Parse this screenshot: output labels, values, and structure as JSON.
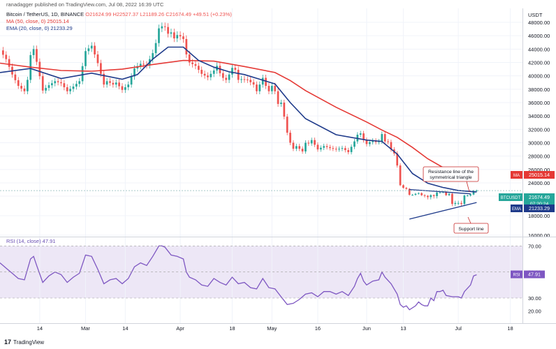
{
  "header": {
    "published": "ranadagger published on TradingView.com, Jul 08, 2022 16:39 UTC"
  },
  "legend": {
    "symbol": "Bitcoin / TetherUS, 1D, BINANCE",
    "ohlc": "O21624.99  H22527.37  L21189.26  C21674.49  +49.51 (+0.23%)",
    "ma": "MA (50, close, 0)  25015.14",
    "ema": "EMA (20, close, 0)  21233.29"
  },
  "rsi_legend": "RSI (14, close)  47.91",
  "footer": {
    "brand": "TradingView",
    "logo": "17"
  },
  "colors": {
    "up": "#26a69a",
    "down": "#ef5350",
    "ma": "#e53935",
    "ema": "#1e3a8a",
    "rsi": "#7e57c2",
    "rsi_band": "#ede7f6",
    "annotation": "#c62828",
    "trendline": "#1e3a8a"
  },
  "chart_data": [
    {
      "type": "candlestick",
      "title": "Bitcoin / TetherUS, 1D, BINANCE",
      "currency": "USDT",
      "y_ticks": [
        "48000.00",
        "46000.00",
        "44000.00",
        "42000.00",
        "40000.00",
        "38000.00",
        "36000.00",
        "34000.00",
        "32000.00",
        "30000.00",
        "28000.00",
        "26000.00",
        "24000.00",
        "20000.00",
        "18000.00",
        "16000.00"
      ],
      "ylim": [
        15500,
        49000
      ],
      "x_ticks": [
        {
          "label": "14",
          "x": 13
        },
        {
          "label": "Mar",
          "x": 28
        },
        {
          "label": "14",
          "x": 41
        },
        {
          "label": "Apr",
          "x": 59
        },
        {
          "label": "18",
          "x": 76
        },
        {
          "label": "May",
          "x": 89
        },
        {
          "label": "16",
          "x": 104
        },
        {
          "label": "Jun",
          "x": 120
        },
        {
          "label": "13",
          "x": 132
        },
        {
          "label": "Jul",
          "x": 150
        },
        {
          "label": "18",
          "x": 167
        }
      ],
      "xlim": [
        0,
        171
      ],
      "close_path": [
        [
          0,
          43800
        ],
        [
          2,
          42500
        ],
        [
          4,
          40200
        ],
        [
          6,
          38500
        ],
        [
          8,
          37700
        ],
        [
          9,
          39400
        ],
        [
          10,
          43100
        ],
        [
          11,
          44000
        ],
        [
          12,
          42100
        ],
        [
          14,
          37800
        ],
        [
          16,
          38600
        ],
        [
          18,
          39200
        ],
        [
          20,
          38900
        ],
        [
          22,
          37700
        ],
        [
          24,
          38400
        ],
        [
          26,
          39200
        ],
        [
          28,
          43700
        ],
        [
          30,
          44500
        ],
        [
          32,
          41900
        ],
        [
          34,
          38700
        ],
        [
          35,
          39200
        ],
        [
          37,
          38700
        ],
        [
          38,
          39000
        ],
        [
          40,
          37900
        ],
        [
          42,
          38700
        ],
        [
          44,
          41100
        ],
        [
          46,
          41800
        ],
        [
          48,
          41600
        ],
        [
          50,
          43400
        ],
        [
          51,
          44900
        ],
        [
          52,
          47100
        ],
        [
          53,
          47400
        ],
        [
          54,
          47300
        ],
        [
          55,
          46300
        ],
        [
          56,
          46500
        ],
        [
          57,
          45600
        ],
        [
          58,
          46100
        ],
        [
          59,
          45900
        ],
        [
          60,
          45500
        ],
        [
          61,
          43200
        ],
        [
          62,
          42000
        ],
        [
          64,
          41500
        ],
        [
          66,
          40300
        ],
        [
          68,
          39800
        ],
        [
          70,
          40800
        ],
        [
          71,
          41500
        ],
        [
          72,
          40400
        ],
        [
          73,
          39700
        ],
        [
          74,
          39400
        ],
        [
          75,
          40200
        ],
        [
          76,
          41200
        ],
        [
          77,
          40900
        ],
        [
          78,
          39400
        ],
        [
          79,
          39500
        ],
        [
          81,
          39400
        ],
        [
          83,
          38700
        ],
        [
          84,
          37700
        ],
        [
          86,
          39700
        ],
        [
          87,
          38500
        ],
        [
          88,
          37700
        ],
        [
          89,
          38500
        ],
        [
          90,
          37700
        ],
        [
          91,
          35800
        ],
        [
          92,
          36000
        ],
        [
          93,
          33900
        ],
        [
          94,
          31500
        ],
        [
          95,
          30000
        ],
        [
          96,
          29100
        ],
        [
          97,
          29500
        ],
        [
          99,
          28700
        ],
        [
          100,
          30000
        ],
        [
          101,
          29900
        ],
        [
          102,
          30400
        ],
        [
          103,
          29700
        ],
        [
          104,
          29000
        ],
        [
          106,
          29500
        ],
        [
          108,
          29200
        ],
        [
          110,
          29000
        ],
        [
          112,
          29200
        ],
        [
          114,
          28600
        ],
        [
          115,
          29400
        ],
        [
          116,
          30200
        ],
        [
          117,
          31200
        ],
        [
          118,
          31400
        ],
        [
          119,
          30400
        ],
        [
          120,
          29800
        ],
        [
          121,
          30100
        ],
        [
          122,
          30300
        ],
        [
          123,
          30100
        ],
        [
          124,
          30200
        ],
        [
          125,
          31300
        ],
        [
          126,
          30200
        ],
        [
          127,
          30100
        ],
        [
          128,
          29000
        ],
        [
          129,
          28400
        ],
        [
          130,
          26600
        ],
        [
          131,
          23300
        ],
        [
          132,
          22500
        ],
        [
          133,
          22200
        ],
        [
          134,
          20400
        ],
        [
          135,
          20400
        ],
        [
          136,
          20700
        ],
        [
          137,
          20900
        ],
        [
          138,
          20300
        ],
        [
          139,
          20100
        ],
        [
          140,
          19900
        ],
        [
          141,
          20300
        ],
        [
          142,
          20000
        ],
        [
          143,
          21100
        ],
        [
          144,
          21100
        ],
        [
          145,
          21300
        ],
        [
          146,
          20300
        ],
        [
          147,
          20700
        ],
        [
          148,
          19200
        ],
        [
          149,
          19300
        ],
        [
          150,
          19300
        ],
        [
          151,
          19200
        ],
        [
          152,
          20200
        ],
        [
          153,
          20200
        ],
        [
          154,
          20500
        ],
        [
          155,
          21600
        ],
        [
          156,
          21700
        ]
      ],
      "ma50": [
        [
          0,
          41900
        ],
        [
          10,
          41300
        ],
        [
          20,
          40800
        ],
        [
          30,
          40700
        ],
        [
          40,
          41000
        ],
        [
          50,
          41700
        ],
        [
          60,
          42300
        ],
        [
          70,
          42200
        ],
        [
          80,
          41400
        ],
        [
          90,
          40500
        ],
        [
          95,
          39300
        ],
        [
          100,
          37800
        ],
        [
          110,
          35300
        ],
        [
          120,
          33100
        ],
        [
          125,
          31900
        ],
        [
          130,
          30800
        ],
        [
          135,
          29300
        ],
        [
          140,
          27600
        ],
        [
          145,
          26300
        ],
        [
          150,
          25500
        ],
        [
          156,
          25015
        ]
      ],
      "ema20": [
        [
          0,
          40500
        ],
        [
          10,
          41100
        ],
        [
          20,
          39600
        ],
        [
          30,
          40400
        ],
        [
          40,
          39500
        ],
        [
          45,
          40200
        ],
        [
          50,
          42500
        ],
        [
          55,
          44300
        ],
        [
          60,
          44300
        ],
        [
          65,
          42300
        ],
        [
          70,
          41300
        ],
        [
          75,
          40600
        ],
        [
          80,
          40200
        ],
        [
          85,
          39500
        ],
        [
          90,
          38800
        ],
        [
          95,
          36000
        ],
        [
          100,
          33600
        ],
        [
          110,
          31200
        ],
        [
          120,
          30400
        ],
        [
          125,
          30200
        ],
        [
          130,
          28300
        ],
        [
          135,
          25400
        ],
        [
          140,
          23900
        ],
        [
          145,
          22600
        ],
        [
          150,
          21700
        ],
        [
          156,
          21233
        ]
      ],
      "resistance_line": [
        [
          134,
          22000
        ],
        [
          154,
          20700
        ]
      ],
      "support_line": [
        [
          134,
          17650
        ],
        [
          156,
          19350
        ]
      ],
      "annotations": [
        {
          "text": "Resistance line of the",
          "lines": [
            "Resistance line of the",
            "symmetrical triangle"
          ]
        },
        {
          "text": "Support line",
          "lines": [
            "Support line"
          ]
        }
      ],
      "price_labels": [
        {
          "tag": "MA",
          "value": "25015.14",
          "price": 25015.14,
          "color": "#e53935"
        },
        {
          "tag": "BTCUSDT",
          "value": "21674.49",
          "sub": "07:20:24",
          "price": 21674.49,
          "color": "#26a69a"
        },
        {
          "tag": "EMA",
          "value": "21233.29",
          "price": 21233.29,
          "color": "#1e3a8a"
        }
      ]
    },
    {
      "type": "line",
      "title": "RSI (14, close)",
      "y_ticks": [
        "70.00",
        "50.00",
        "30.00",
        "20.00"
      ],
      "ylim": [
        15,
        75
      ],
      "band": [
        30,
        70
      ],
      "last_value": "47.91",
      "tag": "RSI",
      "values": [
        [
          0,
          57
        ],
        [
          2,
          53
        ],
        [
          4,
          49
        ],
        [
          6,
          45
        ],
        [
          8,
          44
        ],
        [
          10,
          60
        ],
        [
          11,
          62
        ],
        [
          12,
          55
        ],
        [
          14,
          42
        ],
        [
          16,
          47
        ],
        [
          18,
          50
        ],
        [
          20,
          48
        ],
        [
          22,
          42
        ],
        [
          24,
          46
        ],
        [
          26,
          49
        ],
        [
          28,
          63
        ],
        [
          30,
          62
        ],
        [
          32,
          52
        ],
        [
          34,
          41
        ],
        [
          36,
          44
        ],
        [
          38,
          45
        ],
        [
          40,
          41
        ],
        [
          42,
          45
        ],
        [
          44,
          54
        ],
        [
          46,
          57
        ],
        [
          48,
          55
        ],
        [
          50,
          62
        ],
        [
          52,
          70
        ],
        [
          53,
          70
        ],
        [
          54,
          69
        ],
        [
          56,
          63
        ],
        [
          58,
          62
        ],
        [
          60,
          60
        ],
        [
          61,
          50
        ],
        [
          62,
          46
        ],
        [
          64,
          44
        ],
        [
          66,
          40
        ],
        [
          68,
          39
        ],
        [
          70,
          45
        ],
        [
          72,
          42
        ],
        [
          74,
          40
        ],
        [
          76,
          46
        ],
        [
          78,
          41
        ],
        [
          80,
          42
        ],
        [
          82,
          38
        ],
        [
          84,
          37
        ],
        [
          86,
          45
        ],
        [
          88,
          38
        ],
        [
          90,
          37
        ],
        [
          92,
          31
        ],
        [
          93,
          28
        ],
        [
          94,
          25
        ],
        [
          96,
          26
        ],
        [
          98,
          29
        ],
        [
          100,
          33
        ],
        [
          102,
          34
        ],
        [
          104,
          31
        ],
        [
          106,
          35
        ],
        [
          108,
          35
        ],
        [
          110,
          33
        ],
        [
          112,
          35
        ],
        [
          114,
          32
        ],
        [
          116,
          39
        ],
        [
          117,
          45
        ],
        [
          118,
          49
        ],
        [
          119,
          43
        ],
        [
          120,
          40
        ],
        [
          122,
          43
        ],
        [
          124,
          44
        ],
        [
          125,
          50
        ],
        [
          126,
          46
        ],
        [
          128,
          41
        ],
        [
          130,
          33
        ],
        [
          131,
          25
        ],
        [
          132,
          23
        ],
        [
          133,
          24
        ],
        [
          134,
          21
        ],
        [
          136,
          24
        ],
        [
          137,
          27
        ],
        [
          138,
          25
        ],
        [
          139,
          24
        ],
        [
          140,
          24
        ],
        [
          141,
          30
        ],
        [
          142,
          28
        ],
        [
          143,
          35
        ],
        [
          144,
          35
        ],
        [
          145,
          36
        ],
        [
          146,
          32
        ],
        [
          148,
          31
        ],
        [
          150,
          31
        ],
        [
          151,
          30
        ],
        [
          152,
          35
        ],
        [
          154,
          40
        ],
        [
          155,
          47
        ],
        [
          156,
          47.91
        ]
      ]
    }
  ]
}
